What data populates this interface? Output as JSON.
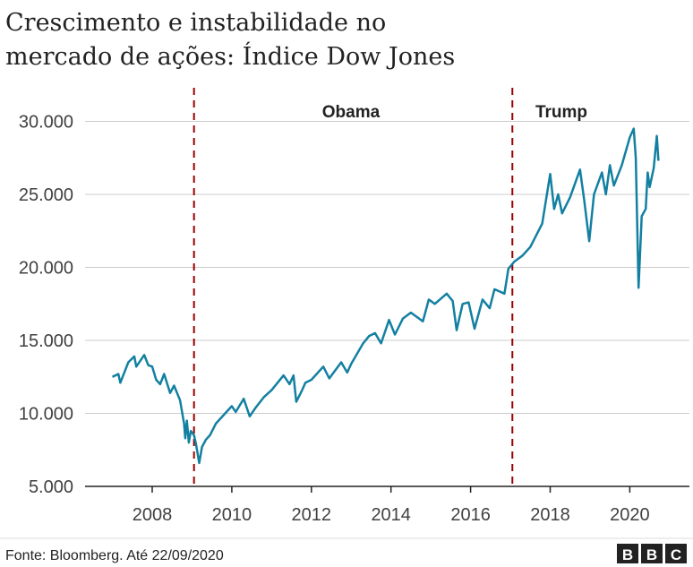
{
  "chart_data": {
    "type": "line",
    "title": "Crescimento e instabilidade no mercado de ações: Índice Dow Jones",
    "title_lines": [
      "Crescimento e instabilidade no",
      "mercado de ações: Índice Dow Jones"
    ],
    "xlabel": "",
    "ylabel": "",
    "xlim": [
      2006.5,
      2021.5
    ],
    "ylim": [
      5000,
      30000
    ],
    "x_ticks": [
      2008,
      2010,
      2012,
      2014,
      2016,
      2018,
      2020
    ],
    "x_tick_labels": [
      "2008",
      "2010",
      "2012",
      "2014",
      "2016",
      "2018",
      "2020"
    ],
    "y_ticks": [
      5000,
      10000,
      15000,
      20000,
      25000,
      30000
    ],
    "y_tick_labels": [
      "5.000",
      "10.000",
      "15.000",
      "20.000",
      "25.000",
      "30.000"
    ],
    "grid": "horizontal",
    "line_color": "#1380A1",
    "marker_color": "#990000",
    "annotations": [
      {
        "label": "Obama",
        "x": 2009.05
      },
      {
        "label": "Trump",
        "x": 2017.05
      }
    ],
    "series": [
      {
        "points": [
          [
            2007.0,
            12500
          ],
          [
            2007.15,
            12700
          ],
          [
            2007.2,
            12100
          ],
          [
            2007.4,
            13500
          ],
          [
            2007.55,
            13900
          ],
          [
            2007.6,
            13200
          ],
          [
            2007.8,
            14000
          ],
          [
            2007.9,
            13300
          ],
          [
            2008.0,
            13200
          ],
          [
            2008.1,
            12300
          ],
          [
            2008.2,
            12000
          ],
          [
            2008.3,
            12700
          ],
          [
            2008.45,
            11400
          ],
          [
            2008.55,
            11900
          ],
          [
            2008.7,
            10900
          ],
          [
            2008.8,
            9300
          ],
          [
            2008.83,
            8300
          ],
          [
            2008.87,
            9500
          ],
          [
            2008.92,
            8000
          ],
          [
            2008.97,
            8800
          ],
          [
            2009.05,
            8500
          ],
          [
            2009.1,
            7900
          ],
          [
            2009.18,
            6600
          ],
          [
            2009.25,
            7700
          ],
          [
            2009.35,
            8200
          ],
          [
            2009.45,
            8500
          ],
          [
            2009.6,
            9300
          ],
          [
            2009.8,
            9900
          ],
          [
            2010.0,
            10500
          ],
          [
            2010.1,
            10100
          ],
          [
            2010.3,
            11000
          ],
          [
            2010.45,
            9800
          ],
          [
            2010.6,
            10400
          ],
          [
            2010.8,
            11100
          ],
          [
            2011.0,
            11600
          ],
          [
            2011.3,
            12600
          ],
          [
            2011.45,
            12000
          ],
          [
            2011.55,
            12600
          ],
          [
            2011.62,
            10800
          ],
          [
            2011.75,
            11500
          ],
          [
            2011.85,
            12100
          ],
          [
            2012.0,
            12300
          ],
          [
            2012.3,
            13200
          ],
          [
            2012.45,
            12400
          ],
          [
            2012.75,
            13500
          ],
          [
            2012.9,
            12800
          ],
          [
            2013.0,
            13400
          ],
          [
            2013.3,
            14800
          ],
          [
            2013.45,
            15300
          ],
          [
            2013.6,
            15500
          ],
          [
            2013.75,
            14800
          ],
          [
            2013.95,
            16400
          ],
          [
            2014.1,
            15400
          ],
          [
            2014.3,
            16500
          ],
          [
            2014.5,
            16900
          ],
          [
            2014.8,
            16300
          ],
          [
            2014.95,
            17800
          ],
          [
            2015.1,
            17500
          ],
          [
            2015.4,
            18200
          ],
          [
            2015.55,
            17700
          ],
          [
            2015.65,
            15700
          ],
          [
            2015.8,
            17500
          ],
          [
            2015.95,
            17600
          ],
          [
            2016.1,
            15800
          ],
          [
            2016.3,
            17800
          ],
          [
            2016.48,
            17200
          ],
          [
            2016.6,
            18500
          ],
          [
            2016.85,
            18200
          ],
          [
            2016.95,
            19900
          ],
          [
            2017.1,
            20400
          ],
          [
            2017.3,
            20800
          ],
          [
            2017.5,
            21400
          ],
          [
            2017.8,
            23000
          ],
          [
            2018.0,
            26400
          ],
          [
            2018.1,
            24000
          ],
          [
            2018.2,
            25000
          ],
          [
            2018.3,
            23700
          ],
          [
            2018.5,
            24800
          ],
          [
            2018.75,
            26700
          ],
          [
            2018.85,
            24700
          ],
          [
            2018.98,
            21800
          ],
          [
            2019.1,
            25000
          ],
          [
            2019.3,
            26500
          ],
          [
            2019.4,
            25000
          ],
          [
            2019.5,
            27000
          ],
          [
            2019.6,
            25600
          ],
          [
            2019.8,
            27000
          ],
          [
            2020.0,
            28900
          ],
          [
            2020.1,
            29500
          ],
          [
            2020.15,
            27500
          ],
          [
            2020.22,
            18600
          ],
          [
            2020.3,
            23500
          ],
          [
            2020.4,
            24000
          ],
          [
            2020.45,
            26500
          ],
          [
            2020.5,
            25500
          ],
          [
            2020.6,
            26800
          ],
          [
            2020.68,
            29000
          ],
          [
            2020.72,
            27300
          ]
        ]
      }
    ]
  },
  "footer": {
    "source": "Fonte: Bloomberg. Até 22/09/2020",
    "logo": "BBC"
  }
}
